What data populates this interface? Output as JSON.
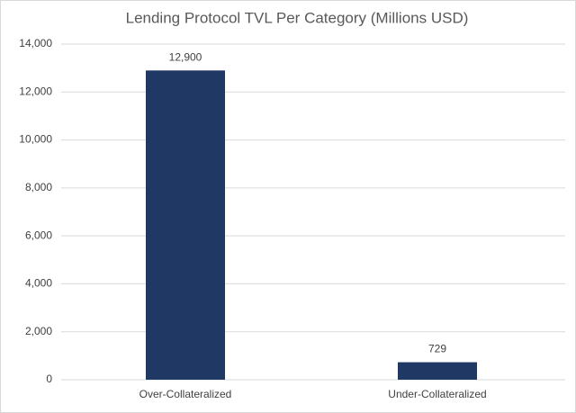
{
  "chart_data": {
    "type": "bar",
    "title": "Lending Protocol TVL Per Category (Millions USD)",
    "categories": [
      "Over-Collateralized",
      "Under-Collateralized"
    ],
    "values": [
      12900,
      729
    ],
    "value_labels": [
      "12,900",
      "729"
    ],
    "color": "#1f3864",
    "ylim": [
      0,
      14000
    ],
    "yticks": [
      0,
      {
        "value": 2000,
        "label": "2,000"
      },
      {
        "value": 4000,
        "label": "4,000"
      },
      {
        "value": 6000,
        "label": "6,000"
      },
      {
        "value": 8000,
        "label": "8,000"
      },
      {
        "value": 10000,
        "label": "10,000"
      },
      {
        "value": 12000,
        "label": "12,000"
      },
      {
        "value": 14000,
        "label": "14,000"
      }
    ],
    "grid": true
  }
}
